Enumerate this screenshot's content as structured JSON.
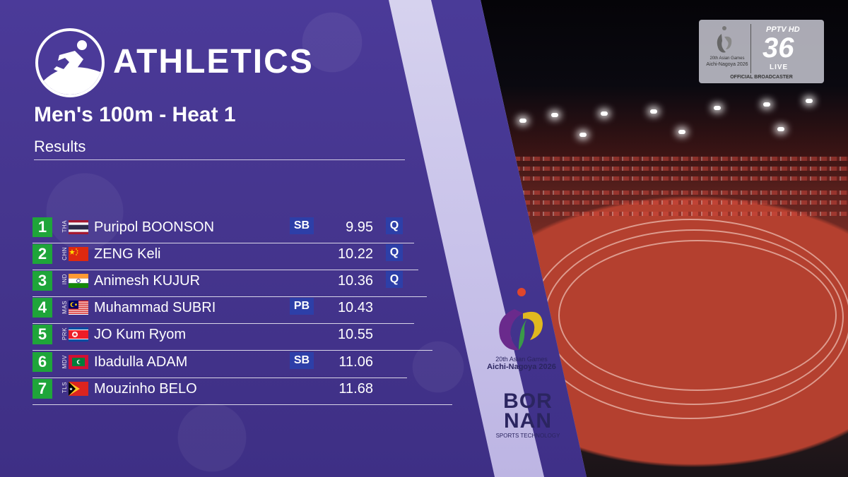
{
  "header": {
    "sport_title": "ATHLETICS",
    "event_title": "Men's 100m - Heat 1",
    "subtitle": "Results",
    "sport_icon": "sprinter-icon"
  },
  "results": [
    {
      "rank": "1",
      "noc": "THA",
      "name": "Puripol BOONSON",
      "record": "SB",
      "time": "9.95",
      "qualifier": "Q"
    },
    {
      "rank": "2",
      "noc": "CHN",
      "name": "ZENG Keli",
      "record": "",
      "time": "10.22",
      "qualifier": "Q"
    },
    {
      "rank": "3",
      "noc": "IND",
      "name": "Animesh KUJUR",
      "record": "",
      "time": "10.36",
      "qualifier": "Q"
    },
    {
      "rank": "4",
      "noc": "MAS",
      "name": "Muhammad SUBRI",
      "record": "PB",
      "time": "10.43",
      "qualifier": ""
    },
    {
      "rank": "5",
      "noc": "PRK",
      "name": "JO Kum Ryom",
      "record": "",
      "time": "10.55",
      "qualifier": ""
    },
    {
      "rank": "6",
      "noc": "MDV",
      "name": "Ibadulla ADAM",
      "record": "SB",
      "time": "11.06",
      "qualifier": ""
    },
    {
      "rank": "7",
      "noc": "TLS",
      "name": "Mouzinho BELO",
      "record": "",
      "time": "11.68",
      "qualifier": ""
    }
  ],
  "broadcaster": {
    "games_line1": "20th Asian Games",
    "games_line2": "Aichi-Nagoya 2026",
    "channel_brand": "PPTV HD",
    "channel_number": "36",
    "live_label": "LIVE",
    "official_label": "OFFICIAL BROADCASTER"
  },
  "emblem": {
    "line1": "20th Asian Games",
    "line2": "Aichi-Nagoya 2026"
  },
  "sponsor": {
    "brand_line1": "BOR",
    "brand_line2": "NAN",
    "tagline": "SPORTS TECHNOLOGY"
  },
  "colors": {
    "panel_purple": "#4b3a99",
    "rank_green": "#1fa53a",
    "badge_blue": "#2d3fa8"
  }
}
